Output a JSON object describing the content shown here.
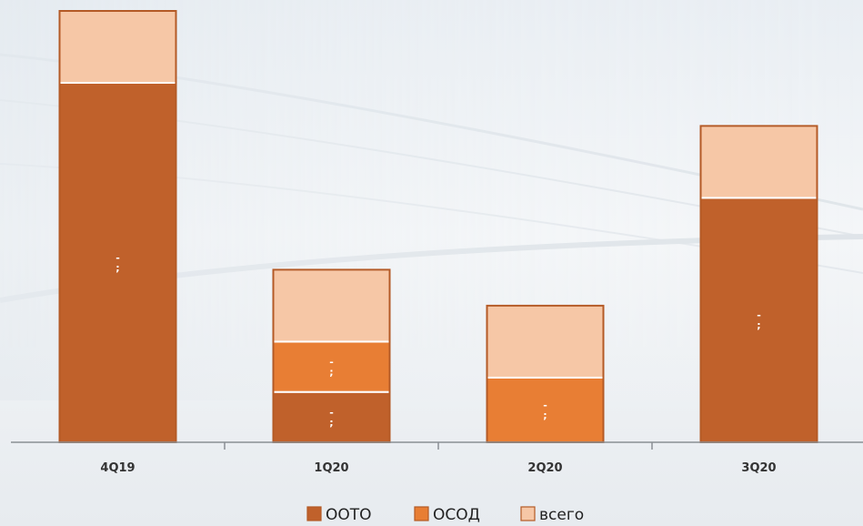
{
  "chart_data": {
    "type": "bar",
    "stacked": true,
    "categories": [
      "4Q19",
      "1Q20",
      "2Q20",
      "3Q20"
    ],
    "series": [
      {
        "name": "ООТО",
        "color": "#c0612b",
        "values": [
          1.0,
          0.14,
          0,
          0.68
        ],
        "labels": [
          "-\n;",
          "-\n;",
          "",
          "-\n;"
        ]
      },
      {
        "name": "ОСОД",
        "color": "#e87e34",
        "values": [
          0,
          0.14,
          0.18,
          0
        ],
        "labels": [
          "",
          "-\n;",
          "-\n;",
          ""
        ]
      },
      {
        "name": "всего",
        "color": "#f6c7a6",
        "values": [
          0.2,
          0.2,
          0.2,
          0.2
        ],
        "labels": [
          "",
          "",
          "",
          ""
        ]
      }
    ],
    "legend_position": "bottom-center",
    "ylim": [
      0,
      1.2
    ],
    "grid": false
  }
}
